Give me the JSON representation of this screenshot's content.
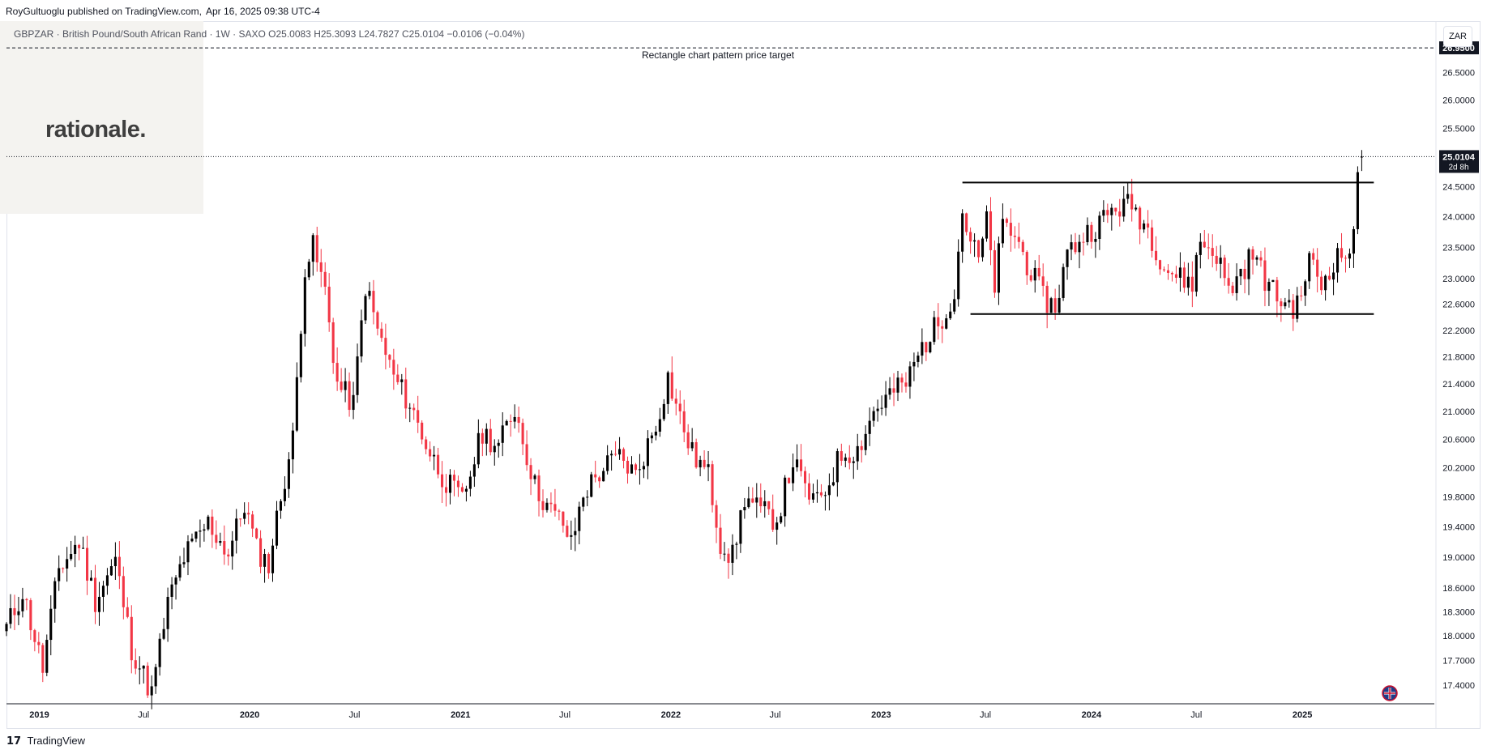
{
  "header": {
    "publisher_text": "RoyGultuoglu published on TradingView.com,",
    "timestamp": "Apr 16, 2025 09:38 UTC-4"
  },
  "watermark": {
    "logo_text": "rationale."
  },
  "legend": {
    "symbol": "GBPZAR",
    "name": "British Pound/South African Rand",
    "interval": "1W",
    "exchange": "SAXO",
    "open": "O25.0083",
    "high": "H25.3093",
    "low": "L24.7827",
    "close": "C25.0104",
    "change": "−0.0106 (−0.04%)",
    "text": "GBPZAR · British Pound/South African Rand · 1W · SAXO"
  },
  "currency_label": "ZAR",
  "footer": {
    "brand": "TradingView",
    "mark": "𝟭𝟳"
  },
  "colors": {
    "up": "#000000",
    "down": "#f23645",
    "grid_text": "#131722"
  },
  "chart_data": {
    "type": "candlestick",
    "title": "",
    "xlabel": "",
    "ylabel": "",
    "y_axis_scale": "log",
    "y_ticks": [
      "26.5000",
      "26.0000",
      "25.5000",
      "24.5000",
      "24.0000",
      "23.5000",
      "23.0000",
      "22.6000",
      "22.2000",
      "21.8000",
      "21.4000",
      "21.0000",
      "20.6000",
      "20.2000",
      "19.8000",
      "19.4000",
      "19.0000",
      "18.6000",
      "18.3000",
      "18.0000",
      "17.7000",
      "17.4000"
    ],
    "x_ticks": [
      "2019",
      "Jul",
      "2020",
      "Jul",
      "2021",
      "Jul",
      "2022",
      "Jul",
      "2023",
      "Jul",
      "2024",
      "Jul",
      "2025"
    ],
    "x_range": [
      "2018-11-05",
      "2025-08-18"
    ],
    "y_range": [
      17.18,
      27.45
    ],
    "last_price": {
      "value": "25.0104",
      "countdown": "2d 8h"
    },
    "target_level": {
      "value": "26.9500",
      "label": "Rectangle chart pattern price target"
    },
    "pattern": {
      "name": "rectangle",
      "resistance": 24.57,
      "support": 22.45,
      "start": "2023-05-22",
      "end": "2025-05-05",
      "support_start": "2023-06-05"
    },
    "waypoints": [
      [
        "2018-11-05",
        18.1
      ],
      [
        "2018-12-03",
        18.55
      ],
      [
        "2019-01-07",
        17.6
      ],
      [
        "2019-02-04",
        18.85
      ],
      [
        "2019-03-11",
        19.2
      ],
      [
        "2019-04-08",
        18.45
      ],
      [
        "2019-05-13",
        18.95
      ],
      [
        "2019-06-10",
        17.85
      ],
      [
        "2019-07-15",
        17.3
      ],
      [
        "2019-08-12",
        18.4
      ],
      [
        "2019-09-09",
        19.0
      ],
      [
        "2019-10-21",
        19.45
      ],
      [
        "2019-11-25",
        19.05
      ],
      [
        "2019-12-23",
        19.7
      ],
      [
        "2020-01-13",
        19.1
      ],
      [
        "2020-02-03",
        18.9
      ],
      [
        "2020-02-24",
        19.8
      ],
      [
        "2020-03-16",
        20.6
      ],
      [
        "2020-04-06",
        23.2
      ],
      [
        "2020-04-20",
        23.5
      ],
      [
        "2020-05-11",
        22.8
      ],
      [
        "2020-06-01",
        21.4
      ],
      [
        "2020-06-29",
        21.1
      ],
      [
        "2020-07-20",
        22.9
      ],
      [
        "2020-08-10",
        22.2
      ],
      [
        "2020-09-07",
        21.5
      ],
      [
        "2020-10-05",
        21.1
      ],
      [
        "2020-11-09",
        20.4
      ],
      [
        "2020-12-07",
        20.0
      ],
      [
        "2021-01-04",
        19.75
      ],
      [
        "2021-02-08",
        20.7
      ],
      [
        "2021-03-08",
        20.5
      ],
      [
        "2021-04-05",
        21.05
      ],
      [
        "2021-05-10",
        19.95
      ],
      [
        "2021-06-07",
        19.6
      ],
      [
        "2021-06-28",
        19.45
      ],
      [
        "2021-07-12",
        19.15
      ],
      [
        "2021-08-02",
        19.85
      ],
      [
        "2021-09-06",
        20.2
      ],
      [
        "2021-10-04",
        20.35
      ],
      [
        "2021-11-01",
        20.1
      ],
      [
        "2021-12-06",
        20.8
      ],
      [
        "2021-12-27",
        21.5
      ],
      [
        "2022-01-17",
        20.9
      ],
      [
        "2022-02-07",
        20.4
      ],
      [
        "2022-03-07",
        20.1
      ],
      [
        "2022-03-28",
        19.2
      ],
      [
        "2022-04-18",
        19.0
      ],
      [
        "2022-05-09",
        19.8
      ],
      [
        "2022-06-06",
        19.6
      ],
      [
        "2022-07-04",
        19.5
      ],
      [
        "2022-08-01",
        20.3
      ],
      [
        "2022-08-22",
        19.9
      ],
      [
        "2022-09-12",
        19.7
      ],
      [
        "2022-09-26",
        19.9
      ],
      [
        "2022-10-24",
        20.4
      ],
      [
        "2022-11-21",
        20.45
      ],
      [
        "2022-12-19",
        21.0
      ],
      [
        "2023-01-16",
        21.25
      ],
      [
        "2023-02-13",
        21.4
      ],
      [
        "2023-03-13",
        21.95
      ],
      [
        "2023-04-10",
        22.3
      ],
      [
        "2023-05-08",
        22.8
      ],
      [
        "2023-05-22",
        24.1
      ],
      [
        "2023-06-05",
        23.6
      ],
      [
        "2023-06-19",
        23.3
      ],
      [
        "2023-07-03",
        23.9
      ],
      [
        "2023-07-17",
        22.9
      ],
      [
        "2023-07-31",
        23.85
      ],
      [
        "2023-08-21",
        23.7
      ],
      [
        "2023-09-18",
        23.1
      ],
      [
        "2023-10-09",
        22.7
      ],
      [
        "2023-10-30",
        22.55
      ],
      [
        "2023-11-20",
        23.4
      ],
      [
        "2023-12-18",
        23.7
      ],
      [
        "2024-01-15",
        23.9
      ],
      [
        "2024-02-12",
        24.15
      ],
      [
        "2024-03-11",
        24.2
      ],
      [
        "2024-04-08",
        23.8
      ],
      [
        "2024-05-06",
        23.2
      ],
      [
        "2024-06-03",
        23.0
      ],
      [
        "2024-06-24",
        22.95
      ],
      [
        "2024-07-08",
        23.6
      ],
      [
        "2024-08-05",
        23.4
      ],
      [
        "2024-08-26",
        22.8
      ],
      [
        "2024-09-16",
        23.1
      ],
      [
        "2024-10-07",
        23.4
      ],
      [
        "2024-10-28",
        23.0
      ],
      [
        "2024-11-18",
        22.7
      ],
      [
        "2024-12-09",
        22.6
      ],
      [
        "2024-12-23",
        22.55
      ],
      [
        "2025-01-13",
        23.3
      ],
      [
        "2025-02-03",
        22.9
      ],
      [
        "2025-02-24",
        23.3
      ],
      [
        "2025-03-17",
        23.4
      ],
      [
        "2025-03-31",
        23.6
      ],
      [
        "2025-04-07",
        24.7
      ],
      [
        "2025-04-14",
        25.01
      ]
    ]
  }
}
